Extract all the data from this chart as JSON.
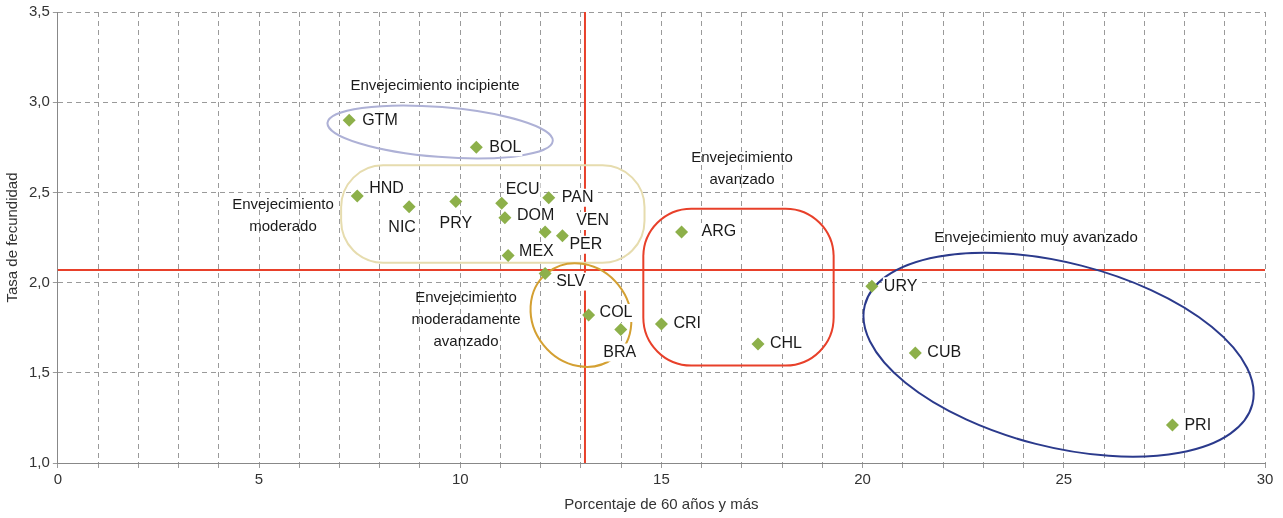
{
  "chart_data": {
    "type": "scatter",
    "xlabel": "Porcentaje de 60 años y más",
    "ylabel": "Tasa de fecundidad",
    "xlim": [
      0,
      30
    ],
    "ylim": [
      1,
      3.5
    ],
    "xticks": [
      0,
      {
        "value": 1,
        "label": null
      },
      {
        "value": 2,
        "label": null
      },
      {
        "value": 3,
        "label": null
      },
      {
        "value": 4,
        "label": null
      },
      5,
      {
        "value": 6,
        "label": null
      },
      {
        "value": 7,
        "label": null
      },
      {
        "value": 8,
        "label": null
      },
      {
        "value": 9,
        "label": null
      },
      10,
      {
        "value": 11,
        "label": null
      },
      {
        "value": 12,
        "label": null
      },
      {
        "value": 13,
        "label": null
      },
      {
        "value": 14,
        "label": null
      },
      15,
      {
        "value": 16,
        "label": null
      },
      {
        "value": 17,
        "label": null
      },
      {
        "value": 18,
        "label": null
      },
      {
        "value": 19,
        "label": null
      },
      20,
      {
        "value": 21,
        "label": null
      },
      {
        "value": 22,
        "label": null
      },
      {
        "value": 23,
        "label": null
      },
      {
        "value": 24,
        "label": null
      },
      25,
      {
        "value": 26,
        "label": null
      },
      {
        "value": 27,
        "label": null
      },
      {
        "value": 28,
        "label": null
      },
      {
        "value": 29,
        "label": null
      },
      30
    ],
    "yticks": [
      {
        "value": 1,
        "label": "1,0"
      },
      {
        "value": 1.5,
        "label": "1,5"
      },
      {
        "value": 2,
        "label": "2,0"
      },
      {
        "value": 2.5,
        "label": "2,5"
      },
      {
        "value": 3,
        "label": "3,0"
      },
      {
        "value": 3.5,
        "label": "3,5"
      }
    ],
    "grid": true,
    "legend": false,
    "marker": "diamond",
    "series": [
      {
        "color": "#8db04a",
        "x": [
          7.24,
          10.4,
          7.44,
          8.73,
          9.89,
          11.03,
          11.11,
          12.2,
          12.11,
          12.54,
          11.19,
          12.11,
          13.19,
          13.99,
          15.5,
          15.0,
          17.4,
          20.23,
          21.31,
          27.7
        ],
        "values": [
          2.9,
          2.75,
          2.48,
          2.42,
          2.45,
          2.44,
          2.36,
          2.47,
          2.28,
          2.26,
          2.15,
          2.05,
          1.82,
          1.74,
          2.28,
          1.77,
          1.66,
          1.98,
          1.61,
          1.21
        ]
      }
    ],
    "ref_lines": [
      {
        "axis": "x",
        "value": 13.1,
        "color": "#e8402a"
      },
      {
        "axis": "y",
        "value": 2.07,
        "color": "#e8402a"
      }
    ],
    "annotations": [
      "Envejecimiento incipiente",
      "Envejecimiento moderado",
      "Envejecimiento moderadamente avanzado",
      "Envejecimiento avanzado",
      "Envejecimiento muy avanzado",
      {
        "text": "GTM",
        "x": 7.24,
        "y": 2.9
      },
      {
        "text": "BOL",
        "x": 10.4,
        "y": 2.75
      },
      {
        "text": "HND",
        "x": 7.44,
        "y": 2.48
      },
      {
        "text": "NIC",
        "x": 8.73,
        "y": 2.42
      },
      {
        "text": "PRY",
        "x": 9.89,
        "y": 2.45
      },
      {
        "text": "ECU",
        "x": 11.03,
        "y": 2.44
      },
      {
        "text": "DOM",
        "x": 11.11,
        "y": 2.36
      },
      {
        "text": "PAN",
        "x": 12.2,
        "y": 2.47
      },
      {
        "text": "VEN",
        "x": 12.11,
        "y": 2.28
      },
      {
        "text": "PER",
        "x": 12.54,
        "y": 2.26
      },
      {
        "text": "MEX",
        "x": 11.19,
        "y": 2.15
      },
      {
        "text": "SLV",
        "x": 12.11,
        "y": 2.05
      },
      {
        "text": "COL",
        "x": 13.19,
        "y": 1.82
      },
      {
        "text": "BRA",
        "x": 13.99,
        "y": 1.74
      },
      {
        "text": "ARG",
        "x": 15.5,
        "y": 2.28
      },
      {
        "text": "CRI",
        "x": 15.0,
        "y": 1.77
      },
      {
        "text": "CHL",
        "x": 17.4,
        "y": 1.66
      },
      {
        "text": "URY",
        "x": 20.23,
        "y": 1.98
      },
      {
        "text": "CUB",
        "x": 21.31,
        "y": 1.61
      },
      {
        "text": "PRI",
        "x": 27.7,
        "y": 1.21
      }
    ]
  }
}
